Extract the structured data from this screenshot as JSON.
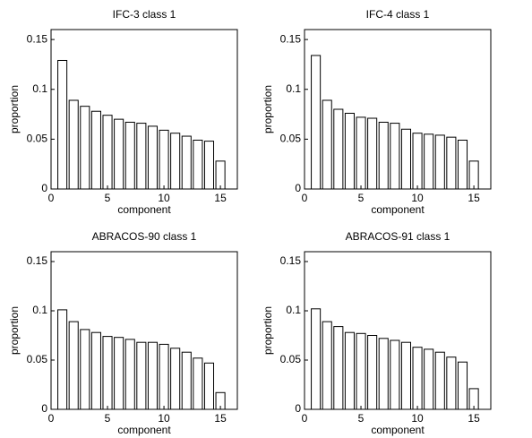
{
  "chart_data": [
    {
      "type": "bar",
      "title": "IFC-3 class 1",
      "xlabel": "component",
      "ylabel": "proportion",
      "x": [
        1,
        2,
        3,
        4,
        5,
        6,
        7,
        8,
        9,
        10,
        11,
        12,
        13,
        14,
        15
      ],
      "values": [
        0.129,
        0.089,
        0.083,
        0.078,
        0.074,
        0.07,
        0.067,
        0.066,
        0.063,
        0.059,
        0.056,
        0.053,
        0.049,
        0.048,
        0.028
      ],
      "color": "#ffffff",
      "xlim": [
        0,
        16.5
      ],
      "xticks": [
        0,
        5,
        10,
        15
      ],
      "ylim": [
        0,
        0.16
      ],
      "yticks": [
        0,
        0.05,
        0.1,
        0.15
      ]
    },
    {
      "type": "bar",
      "title": "IFC-4 class 1",
      "xlabel": "component",
      "ylabel": "proportion",
      "x": [
        1,
        2,
        3,
        4,
        5,
        6,
        7,
        8,
        9,
        10,
        11,
        12,
        13,
        14,
        15
      ],
      "values": [
        0.134,
        0.089,
        0.08,
        0.076,
        0.072,
        0.071,
        0.067,
        0.066,
        0.06,
        0.056,
        0.055,
        0.054,
        0.052,
        0.049,
        0.028
      ],
      "color": "#ffffff",
      "xlim": [
        0,
        16.5
      ],
      "xticks": [
        0,
        5,
        10,
        15
      ],
      "ylim": [
        0,
        0.16
      ],
      "yticks": [
        0,
        0.05,
        0.1,
        0.15
      ]
    },
    {
      "type": "bar",
      "title": "ABRACOS-90 class 1",
      "xlabel": "component",
      "ylabel": "proportion",
      "x": [
        1,
        2,
        3,
        4,
        5,
        6,
        7,
        8,
        9,
        10,
        11,
        12,
        13,
        14,
        15
      ],
      "values": [
        0.101,
        0.089,
        0.081,
        0.078,
        0.074,
        0.073,
        0.071,
        0.068,
        0.068,
        0.066,
        0.062,
        0.058,
        0.052,
        0.047,
        0.017
      ],
      "color": "#ffffff",
      "xlim": [
        0,
        16.5
      ],
      "xticks": [
        0,
        5,
        10,
        15
      ],
      "ylim": [
        0,
        0.16
      ],
      "yticks": [
        0,
        0.05,
        0.1,
        0.15
      ]
    },
    {
      "type": "bar",
      "title": "ABRACOS-91 class 1",
      "xlabel": "component",
      "ylabel": "proportion",
      "x": [
        1,
        2,
        3,
        4,
        5,
        6,
        7,
        8,
        9,
        10,
        11,
        12,
        13,
        14,
        15
      ],
      "values": [
        0.102,
        0.089,
        0.084,
        0.078,
        0.077,
        0.075,
        0.072,
        0.07,
        0.068,
        0.063,
        0.061,
        0.058,
        0.053,
        0.048,
        0.021
      ],
      "color": "#ffffff",
      "xlim": [
        0,
        16.5
      ],
      "xticks": [
        0,
        5,
        10,
        15
      ],
      "ylim": [
        0,
        0.16
      ],
      "yticks": [
        0,
        0.05,
        0.1,
        0.15
      ]
    }
  ]
}
